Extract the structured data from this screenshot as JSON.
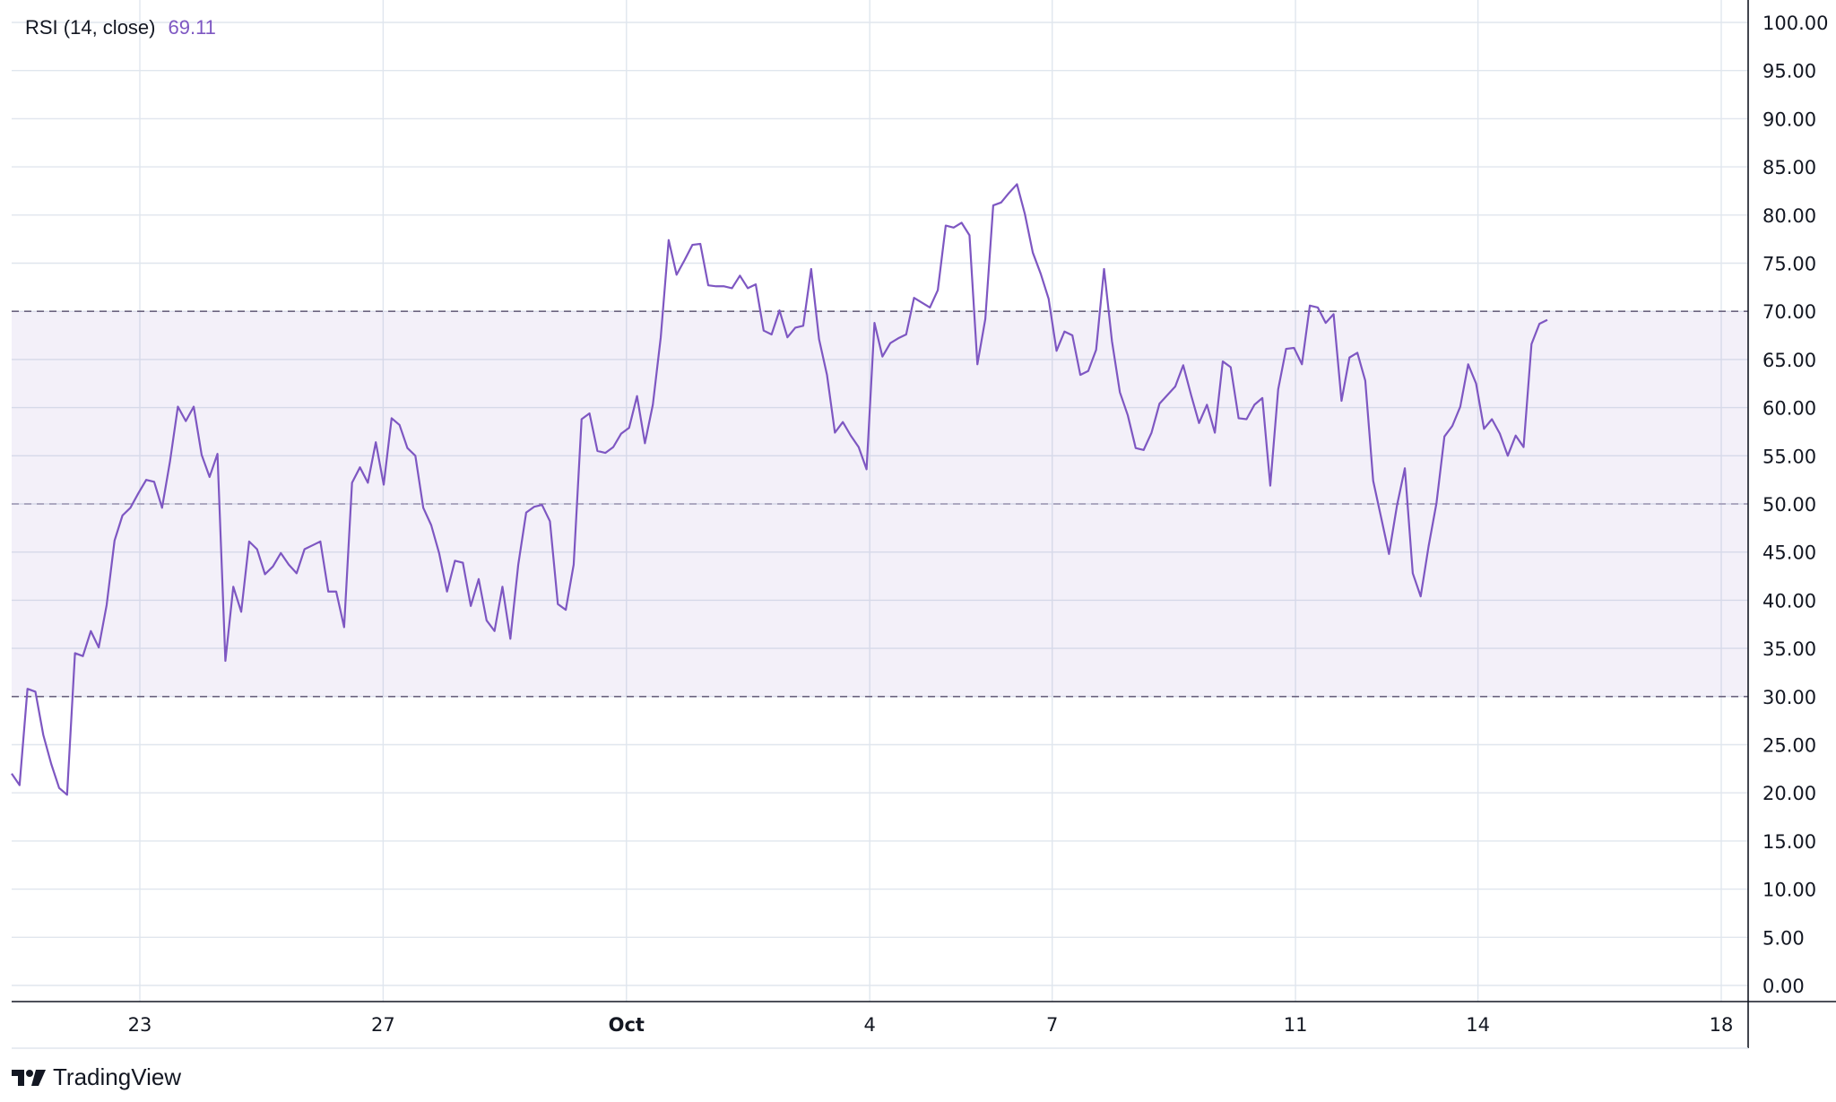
{
  "indicator": {
    "name": "RSI (14, close)",
    "value": "69.11",
    "color": "#7e57c2"
  },
  "brand": {
    "name": "TradingView",
    "icon": "tradingview-logo-icon"
  },
  "colors": {
    "line": "#7e57c2",
    "band_fill": "#7e57c2",
    "grid": "#e0e6ee",
    "text": "#131722",
    "axis": "#131722"
  },
  "chart_data": {
    "type": "line",
    "title": "",
    "xlabel": "",
    "ylabel": "",
    "ylim": [
      0,
      100
    ],
    "grid": true,
    "y_ticks": [
      "100.00",
      "95.00",
      "90.00",
      "85.00",
      "80.00",
      "75.00",
      "70.00",
      "65.00",
      "60.00",
      "55.00",
      "50.00",
      "45.00",
      "40.00",
      "35.00",
      "30.00",
      "25.00",
      "20.00",
      "15.00",
      "10.00",
      "5.00",
      "0.00"
    ],
    "x_ticks": [
      {
        "label": "23",
        "day": 23
      },
      {
        "label": "27",
        "day": 27
      },
      {
        "label": "Oct",
        "day": 31
      },
      {
        "label": "4",
        "day": 35
      },
      {
        "label": "7",
        "day": 38
      },
      {
        "label": "11",
        "day": 42
      },
      {
        "label": "14",
        "day": 45
      },
      {
        "label": "18",
        "day": 49
      }
    ],
    "x_range_days": [
      21,
      49.4
    ],
    "reference_lines": [
      70,
      50,
      30
    ],
    "band": [
      30,
      70
    ],
    "series": [
      {
        "values": [
          22.0,
          20.8,
          30.8,
          30.5,
          26.0,
          23.0,
          20.5,
          19.8,
          34.5,
          34.2,
          36.8,
          35.1,
          39.5,
          46.2,
          48.8,
          49.6,
          51.1,
          52.5,
          52.3,
          49.6,
          54.4,
          60.1,
          58.6,
          60.1,
          55.1,
          52.8,
          55.2,
          33.7,
          41.4,
          38.8,
          46.1,
          45.3,
          42.7,
          43.5,
          44.9,
          43.7,
          42.8,
          45.3,
          45.7,
          46.1,
          40.9,
          40.9,
          37.2,
          52.2,
          53.8,
          52.2,
          56.4,
          52.0,
          58.9,
          58.2,
          55.8,
          55.0,
          49.6,
          47.8,
          44.9,
          40.9,
          44.1,
          43.9,
          39.4,
          42.2,
          37.9,
          36.8,
          41.4,
          36.0,
          43.7,
          49.1,
          49.7,
          49.9,
          48.2,
          39.6,
          39.0,
          43.7,
          58.8,
          59.4,
          55.5,
          55.3,
          55.9,
          57.3,
          57.9,
          61.2,
          56.3,
          60.3,
          67.3,
          77.4,
          73.8,
          75.3,
          76.9,
          77.0,
          72.7,
          72.6,
          72.6,
          72.4,
          73.7,
          72.4,
          72.8,
          68.0,
          67.6,
          70.1,
          67.3,
          68.3,
          68.5,
          74.4,
          67.1,
          63.4,
          57.4,
          58.5,
          57.1,
          55.9,
          53.6,
          68.8,
          65.3,
          66.7,
          67.2,
          67.6,
          71.4,
          70.9,
          70.4,
          72.2,
          78.9,
          78.7,
          79.2,
          77.9,
          64.5,
          69.2,
          81.0,
          81.3,
          82.3,
          83.2,
          80.1,
          76.1,
          73.9,
          71.3,
          65.9,
          67.9,
          67.5,
          63.4,
          63.8,
          66.0,
          74.4,
          66.9,
          61.6,
          59.2,
          55.8,
          55.6,
          57.4,
          60.4,
          61.3,
          62.2,
          64.4,
          61.3,
          58.4,
          60.3,
          57.4,
          64.8,
          64.2,
          58.9,
          58.8,
          60.3,
          61.0,
          51.9,
          61.9,
          66.1,
          66.2,
          64.5,
          70.6,
          70.4,
          68.8,
          69.7,
          60.7,
          65.2,
          65.7,
          62.8,
          52.4,
          48.6,
          44.8,
          49.8,
          53.7,
          42.8,
          40.4,
          45.6,
          50.1,
          57.0,
          58.1,
          60.1,
          64.5,
          62.5,
          57.8,
          58.8,
          57.3,
          55.0,
          57.1,
          55.9,
          66.6,
          68.7,
          69.11
        ]
      }
    ]
  }
}
